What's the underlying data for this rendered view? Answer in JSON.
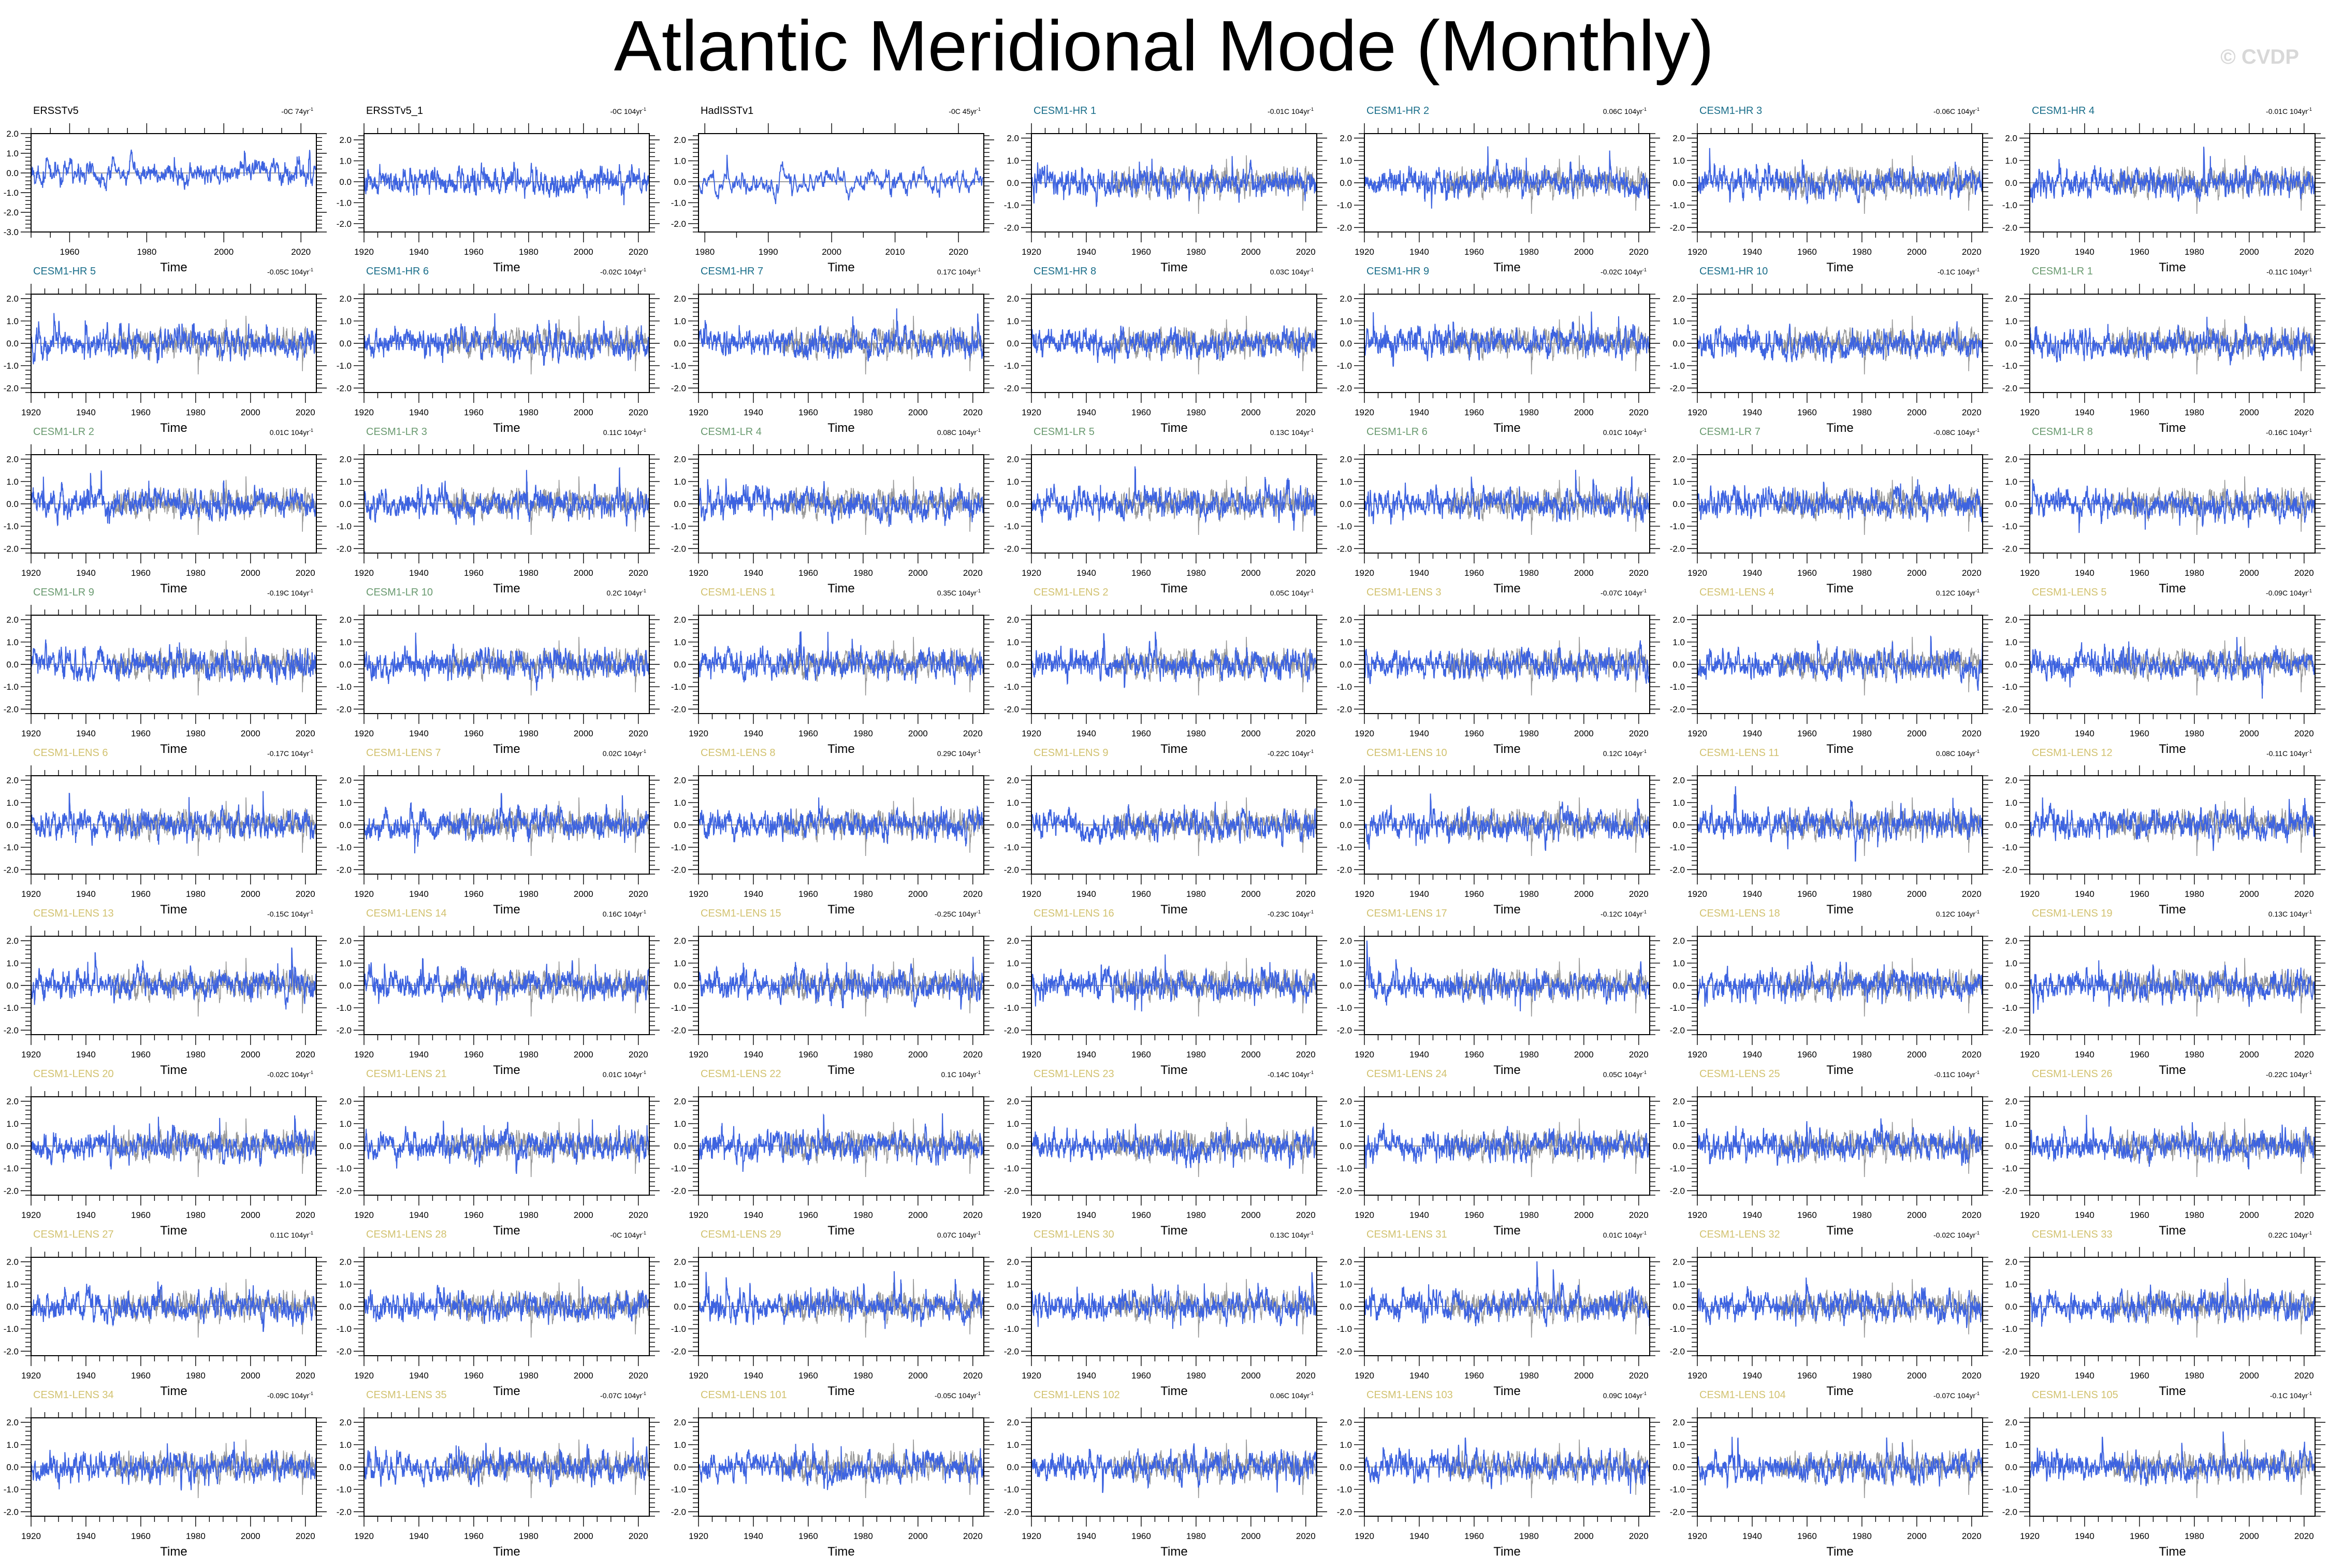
{
  "title": "Atlantic Meridional Mode (Monthly)",
  "credit": "© CVDP",
  "chart_data": {
    "type": "line",
    "layout": "grid 9 rows x 7 columns",
    "xlabel": "Time",
    "colors": {
      "model_series": "#3d63e0",
      "observed_reference": "#999999",
      "zero_line": "#888888",
      "obs_title": "#000000",
      "hr_title": "#1a6e8a",
      "lr_title": "#6a9a70",
      "lens_title": "#d2c270"
    },
    "panels": [
      {
        "name": "ERSSTv5",
        "trend": "-0C 74yr",
        "group": "obs",
        "xlim": [
          1950,
          2024
        ],
        "xticks": [
          1960,
          1980,
          2000,
          2020
        ],
        "ylim": [
          -3,
          2
        ],
        "yticks": [
          -3,
          -2,
          -1,
          0,
          1,
          2
        ]
      },
      {
        "name": "ERSSTv5_1",
        "trend": "-0C 104yr",
        "group": "obs",
        "xlim": [
          1920,
          2024
        ],
        "xticks": [
          1920,
          1940,
          1960,
          1980,
          2000,
          2020
        ],
        "ylim": [
          -2.4,
          2.3
        ],
        "yticks": [
          -2,
          -1,
          0,
          1,
          2
        ]
      },
      {
        "name": "HadISSTv1",
        "trend": "-0C 45yr",
        "group": "obs",
        "xlim": [
          1979,
          2024
        ],
        "xticks": [
          1980,
          1990,
          2000,
          2010,
          2020
        ],
        "ylim": [
          -2.4,
          2.3
        ],
        "yticks": [
          -2,
          -1,
          0,
          1,
          2
        ]
      },
      {
        "name": "CESM1-HR 1",
        "trend": "-0.01C 104yr",
        "group": "hr"
      },
      {
        "name": "CESM1-HR 2",
        "trend": "0.06C 104yr",
        "group": "hr"
      },
      {
        "name": "CESM1-HR 3",
        "trend": "-0.06C 104yr",
        "group": "hr"
      },
      {
        "name": "CESM1-HR 4",
        "trend": "-0.01C 104yr",
        "group": "hr"
      },
      {
        "name": "CESM1-HR 5",
        "trend": "-0.05C 104yr",
        "group": "hr"
      },
      {
        "name": "CESM1-HR 6",
        "trend": "-0.02C 104yr",
        "group": "hr"
      },
      {
        "name": "CESM1-HR 7",
        "trend": "0.17C 104yr",
        "group": "hr"
      },
      {
        "name": "CESM1-HR 8",
        "trend": "0.03C 104yr",
        "group": "hr"
      },
      {
        "name": "CESM1-HR 9",
        "trend": "-0.02C 104yr",
        "group": "hr"
      },
      {
        "name": "CESM1-HR 10",
        "trend": "-0.1C 104yr",
        "group": "hr"
      },
      {
        "name": "CESM1-LR 1",
        "trend": "-0.11C 104yr",
        "group": "lr"
      },
      {
        "name": "CESM1-LR 2",
        "trend": "0.01C 104yr",
        "group": "lr"
      },
      {
        "name": "CESM1-LR 3",
        "trend": "0.11C 104yr",
        "group": "lr"
      },
      {
        "name": "CESM1-LR 4",
        "trend": "0.08C 104yr",
        "group": "lr"
      },
      {
        "name": "CESM1-LR 5",
        "trend": "0.13C 104yr",
        "group": "lr"
      },
      {
        "name": "CESM1-LR 6",
        "trend": "0.01C 104yr",
        "group": "lr"
      },
      {
        "name": "CESM1-LR 7",
        "trend": "-0.08C 104yr",
        "group": "lr"
      },
      {
        "name": "CESM1-LR 8",
        "trend": "-0.16C 104yr",
        "group": "lr"
      },
      {
        "name": "CESM1-LR 9",
        "trend": "-0.19C 104yr",
        "group": "lr"
      },
      {
        "name": "CESM1-LR 10",
        "trend": "0.2C 104yr",
        "group": "lr"
      },
      {
        "name": "CESM1-LENS 1",
        "trend": "0.35C 104yr",
        "group": "lens"
      },
      {
        "name": "CESM1-LENS 2",
        "trend": "0.05C 104yr",
        "group": "lens"
      },
      {
        "name": "CESM1-LENS 3",
        "trend": "-0.07C 104yr",
        "group": "lens"
      },
      {
        "name": "CESM1-LENS 4",
        "trend": "0.12C 104yr",
        "group": "lens"
      },
      {
        "name": "CESM1-LENS 5",
        "trend": "-0.09C 104yr",
        "group": "lens"
      },
      {
        "name": "CESM1-LENS 6",
        "trend": "-0.17C 104yr",
        "group": "lens"
      },
      {
        "name": "CESM1-LENS 7",
        "trend": "0.02C 104yr",
        "group": "lens"
      },
      {
        "name": "CESM1-LENS 8",
        "trend": "0.29C 104yr",
        "group": "lens"
      },
      {
        "name": "CESM1-LENS 9",
        "trend": "-0.22C 104yr",
        "group": "lens"
      },
      {
        "name": "CESM1-LENS 10",
        "trend": "0.12C 104yr",
        "group": "lens"
      },
      {
        "name": "CESM1-LENS 11",
        "trend": "0.08C 104yr",
        "group": "lens"
      },
      {
        "name": "CESM1-LENS 12",
        "trend": "-0.11C 104yr",
        "group": "lens"
      },
      {
        "name": "CESM1-LENS 13",
        "trend": "-0.15C 104yr",
        "group": "lens"
      },
      {
        "name": "CESM1-LENS 14",
        "trend": "0.16C 104yr",
        "group": "lens"
      },
      {
        "name": "CESM1-LENS 15",
        "trend": "-0.25C 104yr",
        "group": "lens"
      },
      {
        "name": "CESM1-LENS 16",
        "trend": "-0.23C 104yr",
        "group": "lens"
      },
      {
        "name": "CESM1-LENS 17",
        "trend": "-0.12C 104yr",
        "group": "lens"
      },
      {
        "name": "CESM1-LENS 18",
        "trend": "0.12C 104yr",
        "group": "lens"
      },
      {
        "name": "CESM1-LENS 19",
        "trend": "0.13C 104yr",
        "group": "lens"
      },
      {
        "name": "CESM1-LENS 20",
        "trend": "-0.02C 104yr",
        "group": "lens"
      },
      {
        "name": "CESM1-LENS 21",
        "trend": "0.01C 104yr",
        "group": "lens"
      },
      {
        "name": "CESM1-LENS 22",
        "trend": "0.1C 104yr",
        "group": "lens"
      },
      {
        "name": "CESM1-LENS 23",
        "trend": "-0.14C 104yr",
        "group": "lens"
      },
      {
        "name": "CESM1-LENS 24",
        "trend": "0.05C 104yr",
        "group": "lens"
      },
      {
        "name": "CESM1-LENS 25",
        "trend": "-0.11C 104yr",
        "group": "lens"
      },
      {
        "name": "CESM1-LENS 26",
        "trend": "-0.22C 104yr",
        "group": "lens"
      },
      {
        "name": "CESM1-LENS 27",
        "trend": "0.11C 104yr",
        "group": "lens"
      },
      {
        "name": "CESM1-LENS 28",
        "trend": "-0C 104yr",
        "group": "lens"
      },
      {
        "name": "CESM1-LENS 29",
        "trend": "0.07C 104yr",
        "group": "lens"
      },
      {
        "name": "CESM1-LENS 30",
        "trend": "0.13C 104yr",
        "group": "lens"
      },
      {
        "name": "CESM1-LENS 31",
        "trend": "0.01C 104yr",
        "group": "lens"
      },
      {
        "name": "CESM1-LENS 32",
        "trend": "-0.02C 104yr",
        "group": "lens"
      },
      {
        "name": "CESM1-LENS 33",
        "trend": "0.22C 104yr",
        "group": "lens"
      },
      {
        "name": "CESM1-LENS 34",
        "trend": "-0.09C 104yr",
        "group": "lens"
      },
      {
        "name": "CESM1-LENS 35",
        "trend": "-0.07C 104yr",
        "group": "lens"
      },
      {
        "name": "CESM1-LENS 101",
        "trend": "-0.05C 104yr",
        "group": "lens"
      },
      {
        "name": "CESM1-LENS 102",
        "trend": "0.06C 104yr",
        "group": "lens"
      },
      {
        "name": "CESM1-LENS 103",
        "trend": "0.09C 104yr",
        "group": "lens"
      },
      {
        "name": "CESM1-LENS 104",
        "trend": "-0.07C 104yr",
        "group": "lens"
      },
      {
        "name": "CESM1-LENS 105",
        "trend": "-0.1C 104yr",
        "group": "lens"
      }
    ],
    "default_panel": {
      "xlim": [
        1920,
        2024
      ],
      "xticks": [
        1920,
        1940,
        1960,
        1980,
        2000,
        2020
      ],
      "ylim": [
        -2.2,
        2.2
      ],
      "yticks": [
        -2,
        -1,
        0,
        1,
        2
      ]
    }
  }
}
